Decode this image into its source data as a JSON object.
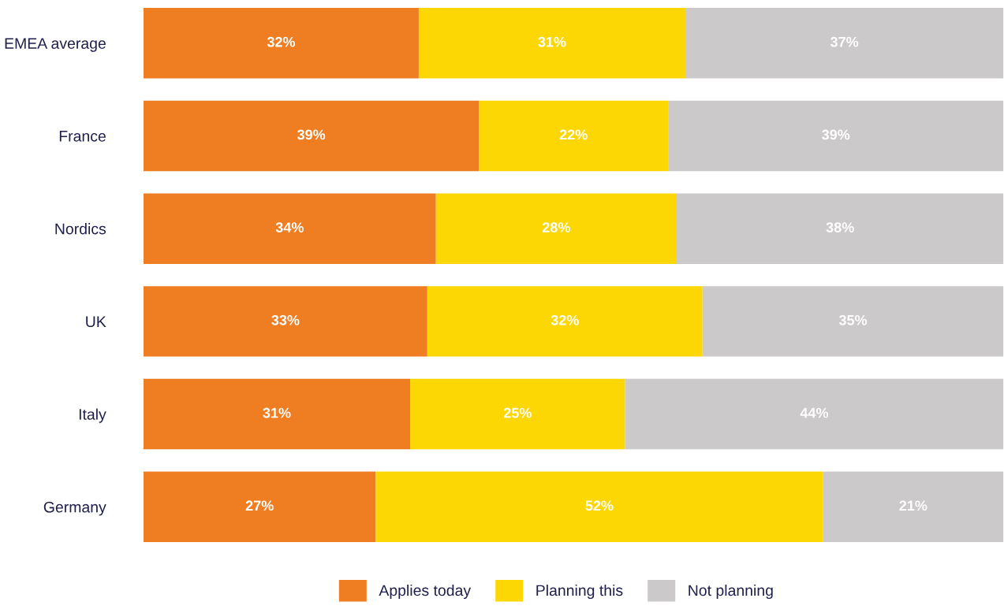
{
  "chart_data": {
    "type": "bar",
    "orientation": "horizontal",
    "stacked": true,
    "categories": [
      "EMEA average",
      "France",
      "Nordics",
      "UK",
      "Italy",
      "Germany"
    ],
    "series": [
      {
        "name": "Applies today",
        "color": "#ef7d22",
        "values": [
          32,
          39,
          34,
          33,
          31,
          27
        ],
        "value_labels": [
          "32%",
          "39%",
          "34%",
          "33%",
          "31%",
          "27%"
        ]
      },
      {
        "name": "Planning this",
        "color": "#fdd704",
        "values": [
          31,
          22,
          28,
          32,
          25,
          52
        ],
        "value_labels": [
          "31%",
          "22%",
          "28%",
          "32%",
          "25%",
          "52%"
        ]
      },
      {
        "name": "Not planning",
        "color": "#cbc9c9",
        "values": [
          37,
          39,
          38,
          35,
          44,
          21
        ],
        "value_labels": [
          "37%",
          "39%",
          "38%",
          "35%",
          "44%",
          "21%"
        ]
      }
    ],
    "legend": "bottom",
    "grid": false
  }
}
